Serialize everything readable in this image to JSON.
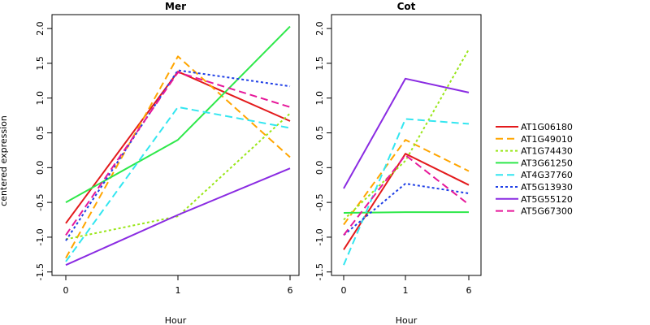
{
  "chart_data": [
    {
      "type": "line",
      "title": "Mer",
      "xlabel": "Hour",
      "ylabel": "centered expression",
      "categories": [
        "0",
        "1",
        "6"
      ],
      "ylim": [
        -1.55,
        2.2
      ],
      "yticks": [
        "-1.5",
        "-1.0",
        "-0.5",
        "0.0",
        "0.5",
        "1.0",
        "1.5",
        "2.0"
      ],
      "series": [
        {
          "name": "AT1G06180",
          "values": [
            -0.8,
            1.38,
            0.67
          ]
        },
        {
          "name": "AT1G49010",
          "values": [
            -1.3,
            1.6,
            0.15
          ]
        },
        {
          "name": "AT1G74430",
          "values": [
            -1.03,
            -0.7,
            0.78
          ]
        },
        {
          "name": "AT3G61250",
          "values": [
            -0.5,
            0.4,
            2.03
          ]
        },
        {
          "name": "AT4G37760",
          "values": [
            -1.35,
            0.87,
            0.57
          ]
        },
        {
          "name": "AT5G13930",
          "values": [
            -1.05,
            1.4,
            1.17
          ]
        },
        {
          "name": "AT5G55120",
          "values": [
            -1.4,
            -0.68,
            -0.01
          ]
        },
        {
          "name": "AT5G67300",
          "values": [
            -0.97,
            1.37,
            0.87
          ]
        }
      ]
    },
    {
      "type": "line",
      "title": "Cot",
      "xlabel": "Hour",
      "categories": [
        "0",
        "1",
        "6"
      ],
      "ylim": [
        -1.55,
        2.2
      ],
      "yticks": [
        "-1.5",
        "-1.0",
        "-0.5",
        "0.0",
        "0.5",
        "1.0",
        "1.5",
        "2.0"
      ],
      "series": [
        {
          "name": "AT1G06180",
          "values": [
            -1.18,
            0.2,
            -0.25
          ]
        },
        {
          "name": "AT1G49010",
          "values": [
            -0.82,
            0.4,
            -0.05
          ]
        },
        {
          "name": "AT1G74430",
          "values": [
            -0.75,
            0.1,
            1.7
          ]
        },
        {
          "name": "AT3G61250",
          "values": [
            -0.65,
            -0.64,
            -0.64
          ]
        },
        {
          "name": "AT4G37760",
          "values": [
            -1.4,
            0.7,
            0.63
          ]
        },
        {
          "name": "AT5G13930",
          "values": [
            -0.97,
            -0.23,
            -0.37
          ]
        },
        {
          "name": "AT5G55120",
          "values": [
            -0.3,
            1.28,
            1.08
          ]
        },
        {
          "name": "AT5G67300",
          "values": [
            -0.97,
            0.18,
            -0.53
          ]
        }
      ]
    }
  ],
  "legend": {
    "placement": "right",
    "entries": [
      {
        "label": "AT1G06180",
        "color": "#e31a1c",
        "dash": "solid"
      },
      {
        "label": "AT1G49010",
        "color": "#ffa500",
        "dash": "dashed"
      },
      {
        "label": "AT1G74430",
        "color": "#99e619",
        "dash": "dotted"
      },
      {
        "label": "AT3G61250",
        "color": "#2ee84a",
        "dash": "solid"
      },
      {
        "label": "AT4G37760",
        "color": "#33e6f0",
        "dash": "dashed"
      },
      {
        "label": "AT5G13930",
        "color": "#1f3fe6",
        "dash": "dotted"
      },
      {
        "label": "AT5G55120",
        "color": "#8a2be2",
        "dash": "solid"
      },
      {
        "label": "AT5G67300",
        "color": "#e6189a",
        "dash": "dashed"
      }
    ]
  }
}
